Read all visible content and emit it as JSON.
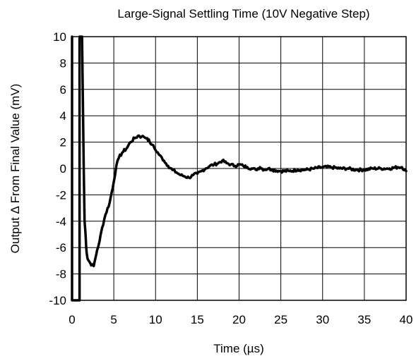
{
  "chart_data": {
    "type": "line",
    "title": "Large-Signal Settling Time (10V Negative Step)",
    "xlabel": "Time (µs)",
    "ylabel": "Output Δ From Final Value (mV)",
    "xlim": [
      0,
      40
    ],
    "ylim": [
      -10,
      10
    ],
    "xticks": [
      0,
      5,
      10,
      15,
      20,
      25,
      30,
      35,
      40
    ],
    "yticks": [
      -10,
      -8,
      -6,
      -4,
      -2,
      0,
      2,
      4,
      6,
      8,
      10
    ],
    "xtick_labels": [
      "0",
      "5",
      "10",
      "15",
      "20",
      "25",
      "30",
      "35",
      "40"
    ],
    "ytick_labels": [
      "-10",
      "-8",
      "-6",
      "-4",
      "-2",
      "0",
      "2",
      "4",
      "6",
      "8",
      "10"
    ],
    "grid": true,
    "series": [
      {
        "x": [
          0.0,
          0.0,
          0.9,
          0.9,
          1.2,
          1.4,
          1.5,
          1.6,
          1.7,
          1.8,
          1.9,
          2.0,
          2.2,
          2.4,
          2.6,
          2.8,
          3.0,
          3.3,
          3.6,
          4.0,
          4.5,
          5.0,
          5.3,
          5.6,
          6.0,
          6.5,
          7.0,
          7.5,
          8.0,
          8.3,
          8.6,
          9.0,
          9.3,
          9.6,
          10.0,
          10.5,
          11.0,
          11.5,
          12.0,
          12.5,
          13.0,
          13.5,
          14.0,
          14.5,
          15.0,
          15.5,
          16.0,
          16.5,
          17.0,
          17.5,
          18.0,
          18.5,
          19.0,
          19.5,
          20.0,
          20.5,
          21.0,
          21.5,
          22.0,
          22.5,
          23.0,
          23.5,
          24.0,
          25.0,
          26.0,
          27.0,
          28.0,
          29.0,
          30.0,
          31.0,
          32.0,
          33.0,
          34.0,
          35.0,
          36.0,
          37.0,
          38.0,
          39.0,
          39.5,
          40.0
        ],
        "y": [
          10,
          -10,
          -10,
          10,
          10,
          0,
          -4.0,
          -4.8,
          -6.0,
          -6.6,
          -6.9,
          -7.0,
          -7.2,
          -7.3,
          -7.4,
          -6.8,
          -6.2,
          -5.5,
          -4.5,
          -3.5,
          -2.6,
          -1.0,
          0.2,
          0.8,
          1.2,
          1.5,
          2.0,
          2.3,
          2.5,
          2.4,
          2.4,
          2.3,
          2.0,
          1.8,
          1.4,
          1.0,
          0.6,
          0.2,
          -0.1,
          -0.3,
          -0.5,
          -0.6,
          -0.7,
          -0.5,
          -0.4,
          -0.2,
          0.0,
          0.2,
          0.3,
          0.4,
          0.6,
          0.4,
          0.3,
          0.2,
          0.3,
          0.2,
          0.1,
          0.0,
          -0.1,
          0.1,
          -0.1,
          0.0,
          -0.1,
          -0.2,
          -0.2,
          -0.1,
          -0.1,
          0.0,
          0.1,
          0.1,
          0.0,
          0.0,
          -0.1,
          -0.1,
          0.0,
          0.0,
          0.0,
          0.1,
          0.1,
          -0.2
        ]
      }
    ]
  }
}
